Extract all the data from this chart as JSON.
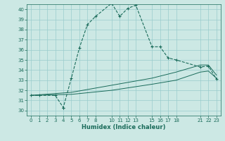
{
  "xlabel": "Humidex (Indice chaleur)",
  "bg_color": "#cce8e4",
  "grid_color": "#99cccc",
  "line_color": "#1a6b5a",
  "xlim": [
    -0.5,
    23.5
  ],
  "ylim": [
    29.5,
    40.5
  ],
  "xticks": [
    0,
    1,
    2,
    3,
    4,
    5,
    6,
    7,
    8,
    10,
    11,
    12,
    13,
    15,
    16,
    17,
    18,
    21,
    22,
    23
  ],
  "yticks": [
    30,
    31,
    32,
    33,
    34,
    35,
    36,
    37,
    38,
    39,
    40
  ],
  "line1_x": [
    0,
    1,
    3,
    4,
    4,
    5,
    6,
    7,
    8,
    10,
    11,
    12,
    13,
    15,
    16,
    17,
    18,
    21,
    22,
    23
  ],
  "line1_y": [
    31.5,
    31.5,
    31.5,
    30.3,
    30.3,
    33.2,
    36.2,
    38.5,
    39.3,
    40.6,
    39.3,
    40.1,
    40.4,
    36.3,
    36.3,
    35.2,
    35.0,
    34.3,
    34.4,
    33.1
  ],
  "line2_x": [
    0,
    5,
    10,
    15,
    18,
    21,
    22,
    23
  ],
  "line2_y": [
    31.5,
    31.8,
    32.5,
    33.2,
    33.8,
    34.5,
    34.5,
    33.5
  ],
  "line3_x": [
    0,
    5,
    10,
    15,
    18,
    21,
    22,
    23
  ],
  "line3_y": [
    31.5,
    31.6,
    32.0,
    32.6,
    33.0,
    33.8,
    33.9,
    33.2
  ]
}
